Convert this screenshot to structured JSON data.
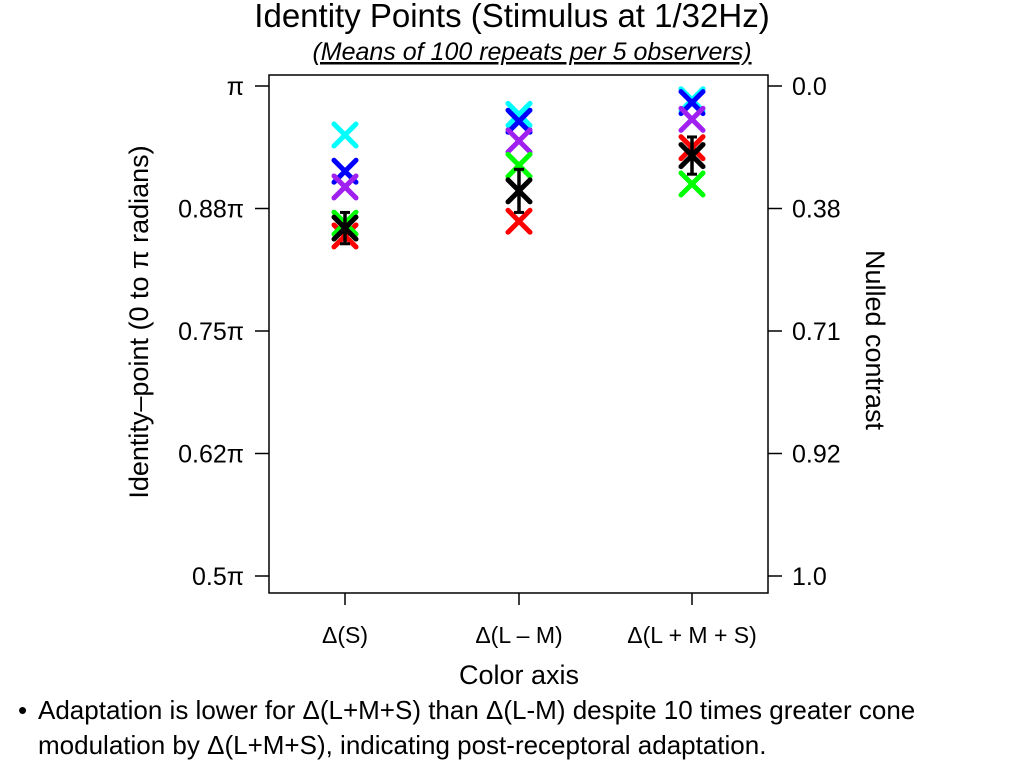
{
  "chart_data": {
    "type": "scatter",
    "title": "Identity Points (Stimulus at 1/32Hz)",
    "subtitle": "(Means of 100 repeats per 5 observers)",
    "xlabel": "Color axis",
    "ylabel": "Identity–point (0 to π radians)",
    "ylabel_right": "Nulled contrast",
    "categories": [
      "Δ(S)",
      "Δ(L – M)",
      "Δ(L + M + S)"
    ],
    "ylim": [
      0.5,
      1.0
    ],
    "yticks": [
      1.0,
      0.875,
      0.75,
      0.625,
      0.5
    ],
    "ytick_labels_left": [
      "π",
      "0.88π",
      "0.75π",
      "0.62π",
      "0.5π"
    ],
    "ytick_labels_right": [
      "0.0",
      "0.38",
      "0.71",
      "0.92",
      "1.0"
    ],
    "grid": false,
    "legend": "none",
    "series": [
      {
        "color": "#00ffff",
        "values": [
          0.95,
          0.971,
          0.986
        ]
      },
      {
        "color": "#0000ff",
        "values": [
          0.913,
          0.964,
          0.983
        ]
      },
      {
        "color": "#a020f0",
        "values": [
          0.897,
          0.944,
          0.966
        ]
      },
      {
        "color": "#ff0000",
        "values": [
          0.847,
          0.862,
          0.937
        ]
      },
      {
        "color": "#00ff00",
        "values": [
          0.86,
          0.919,
          0.9
        ]
      },
      {
        "color": "#000000",
        "values": [
          0.855,
          0.893,
          0.929
        ],
        "error": [
          0.016,
          0.022,
          0.019
        ]
      }
    ]
  },
  "note": {
    "bullet": "•",
    "text": "Adaptation is lower for Δ(L+M+S) than Δ(L-M) despite 10 times greater cone modulation by Δ(L+M+S), indicating post-receptoral adaptation."
  }
}
